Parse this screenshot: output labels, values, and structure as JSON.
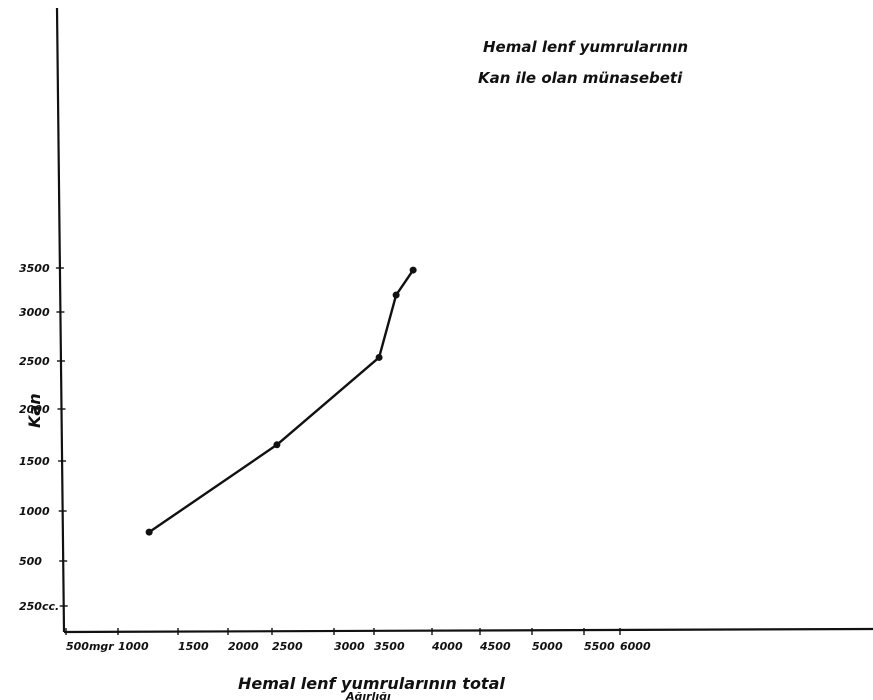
{
  "chart_data": {
    "type": "line",
    "title_lines": [
      "Hemal lenf yumrularının",
      "Kan ile olan münasebeti"
    ],
    "xlabel": "Hemal lenf yumrularının total",
    "xlabel_line2": "Ağırlığı",
    "ylabel": "Kan",
    "x_tick_labels": [
      "500mgr",
      "1000",
      "1500",
      "2000",
      "2500",
      "3000",
      "3500",
      "4000",
      "4500",
      "5000",
      "5500",
      "6000"
    ],
    "y_tick_labels": [
      "250cc.",
      "500",
      "1000",
      "1500",
      "2000",
      "2500",
      "3000",
      "3500"
    ],
    "xlim": [
      500,
      10000
    ],
    "ylim": [
      0,
      5000
    ],
    "grid": false,
    "series": [
      {
        "x": [
          1500,
          3000,
          4200,
          4400,
          4600
        ],
        "y": [
          800,
          1500,
          2200,
          2700,
          2900
        ]
      }
    ]
  }
}
